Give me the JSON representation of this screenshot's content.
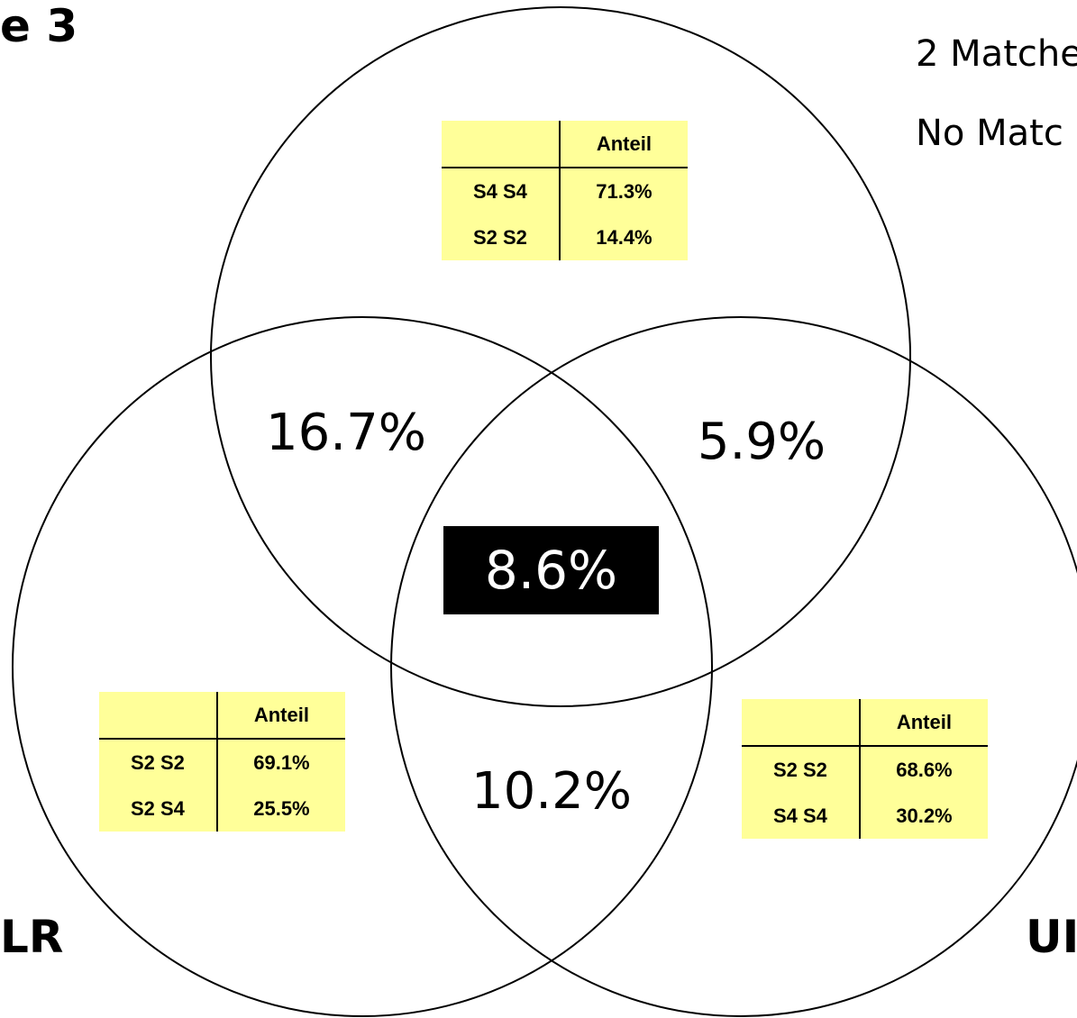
{
  "title": "e 3",
  "legend": {
    "line1": "2 Matche",
    "line2": "No Matc"
  },
  "sets": {
    "left_label": "LR",
    "right_label": "UI"
  },
  "regions": {
    "top_left_overlap": "16.7%",
    "top_right_overlap": "5.9%",
    "bottom_overlap": "10.2%",
    "center": "8.6%"
  },
  "tables": {
    "top": {
      "header": [
        "",
        "Anteil"
      ],
      "rows": [
        [
          "S4 S4",
          "71.3%"
        ],
        [
          "S2 S2",
          "14.4%"
        ]
      ]
    },
    "left": {
      "header": [
        "",
        "Anteil"
      ],
      "rows": [
        [
          "S2 S2",
          "69.1%"
        ],
        [
          "S2 S4",
          "25.5%"
        ]
      ]
    },
    "right": {
      "header": [
        "",
        "Anteil"
      ],
      "rows": [
        [
          "S2 S2",
          "68.6%"
        ],
        [
          "S4 S4",
          "30.2%"
        ]
      ]
    }
  },
  "colors": {
    "table_fill": "#ffff99",
    "center_fill": "#000000",
    "center_text": "#ffffff",
    "circle_stroke": "#000000"
  }
}
